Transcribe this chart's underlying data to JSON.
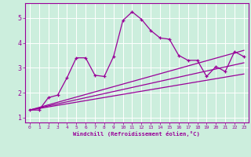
{
  "title": "",
  "xlabel": "Windchill (Refroidissement éolien,°C)",
  "bg_color": "#cceedd",
  "line_color": "#990099",
  "xlim": [
    -0.5,
    23.5
  ],
  "ylim": [
    0.8,
    5.6
  ],
  "xticks": [
    0,
    1,
    2,
    3,
    4,
    5,
    6,
    7,
    8,
    9,
    10,
    11,
    12,
    13,
    14,
    15,
    16,
    17,
    18,
    19,
    20,
    21,
    22,
    23
  ],
  "yticks": [
    1,
    2,
    3,
    4,
    5
  ],
  "grid": true,
  "main_x": [
    0,
    1,
    2,
    3,
    4,
    5,
    6,
    7,
    8,
    9,
    10,
    11,
    12,
    13,
    14,
    15,
    16,
    17,
    18,
    19,
    20,
    21,
    22,
    23
  ],
  "main_y": [
    1.3,
    1.3,
    1.8,
    1.9,
    2.6,
    3.4,
    3.4,
    2.7,
    2.65,
    3.45,
    4.9,
    5.25,
    4.95,
    4.5,
    4.2,
    4.15,
    3.5,
    3.3,
    3.3,
    2.65,
    3.05,
    2.85,
    3.65,
    3.45
  ],
  "trend1_x": [
    0,
    23
  ],
  "trend1_y": [
    1.3,
    3.7
  ],
  "trend2_x": [
    0,
    23
  ],
  "trend2_y": [
    1.3,
    3.2
  ],
  "trend3_x": [
    0,
    23
  ],
  "trend3_y": [
    1.3,
    2.75
  ]
}
